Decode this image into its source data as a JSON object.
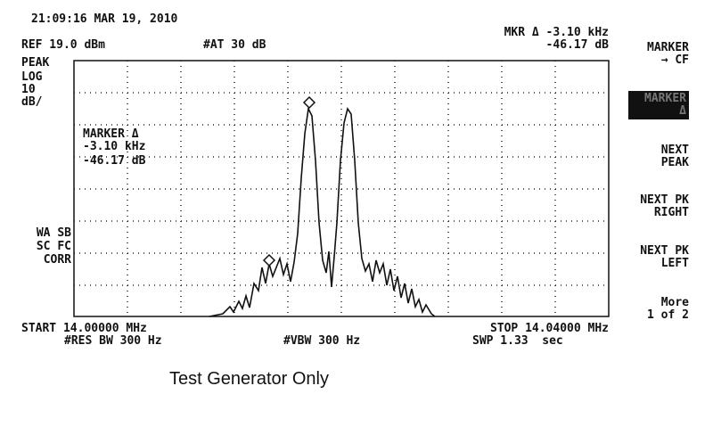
{
  "status": {
    "timestamp": "21:09:16 MAR 19, 2010",
    "reference": "REF 19.0 dBm",
    "attenuation": "#AT 30 dB",
    "marker_readout": [
      "MKR Δ -3.10 kHz",
      "-46.17 dB"
    ]
  },
  "scale": [
    "PEAK",
    "LOG",
    "10",
    "dB/"
  ],
  "correction": [
    "WA SB",
    "SC FC",
    "CORR"
  ],
  "marker_box": [
    "MARKER Δ",
    "-3.10 kHz",
    "-46.17 dB"
  ],
  "softkeys": [
    [
      "MARKER",
      "→ CF"
    ],
    [
      "MARKER",
      "Δ"
    ],
    [
      "NEXT",
      "PEAK"
    ],
    [
      "NEXT PK",
      "RIGHT"
    ],
    [
      "NEXT PK",
      "LEFT"
    ],
    [
      "More",
      "1 of 2"
    ]
  ],
  "footer": {
    "start": "START 14.00000 MHz",
    "stop": "STOP 14.04000 MHz",
    "rbw": "#RES BW 300 Hz",
    "vbw": "#VBW 300 Hz",
    "sweep": "SWP 1.33  sec"
  },
  "caption": "Test Generator Only"
}
